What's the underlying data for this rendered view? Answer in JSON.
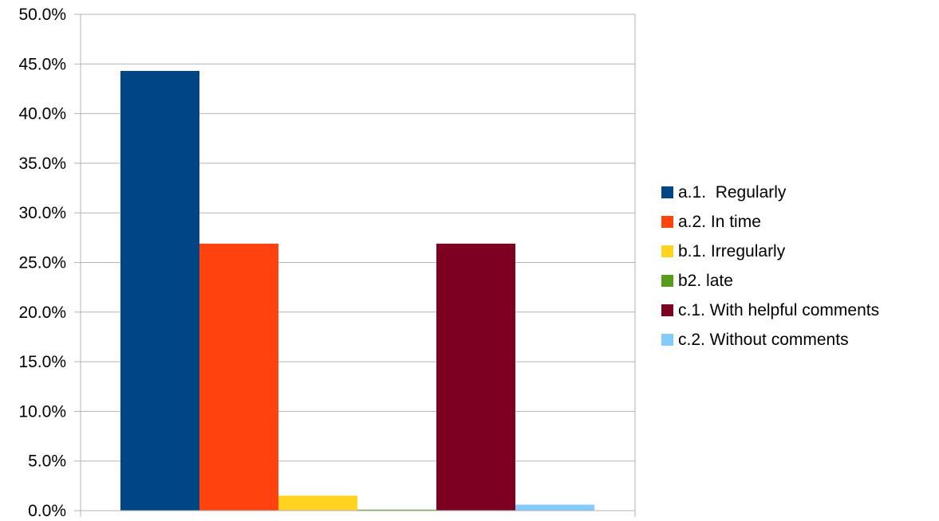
{
  "chart_data": {
    "type": "bar",
    "title": "",
    "xlabel": "",
    "ylabel": "",
    "ylim": [
      0,
      50
    ],
    "yticks": [
      "0.0%",
      "5.0%",
      "10.0%",
      "15.0%",
      "20.0%",
      "25.0%",
      "30.0%",
      "35.0%",
      "40.0%",
      "45.0%",
      "50.0%"
    ],
    "grid": true,
    "legend_position": "right",
    "series": [
      {
        "name": "a.1.  Regularly",
        "value": 44.3,
        "color": "#004586"
      },
      {
        "name": "a.2. In time",
        "value": 26.9,
        "color": "#ff420e"
      },
      {
        "name": "b.1. Irregularly",
        "value": 1.5,
        "color": "#ffd320"
      },
      {
        "name": "b2. late",
        "value": 0.1,
        "color": "#579d1c"
      },
      {
        "name": "c.1. With helpful comments",
        "value": 26.9,
        "color": "#7e0021"
      },
      {
        "name": "c.2. Without comments",
        "value": 0.6,
        "color": "#83caff"
      }
    ]
  }
}
